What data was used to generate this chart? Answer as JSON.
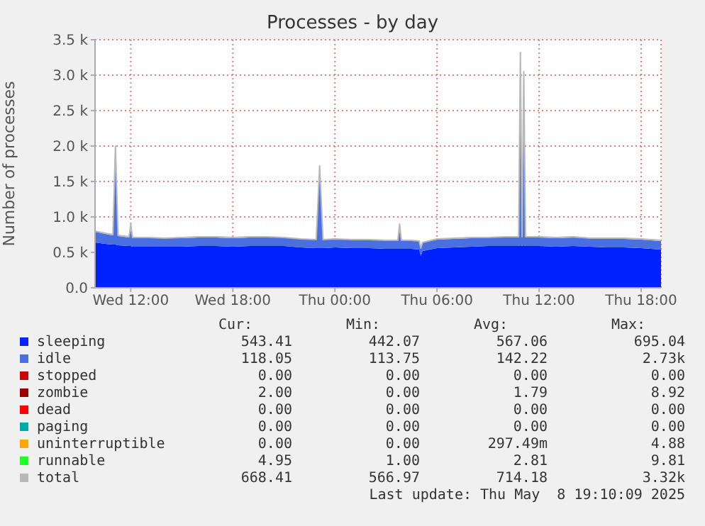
{
  "chart_data": {
    "type": "area",
    "title": "Processes - by day",
    "ylabel": "Number of processes",
    "stacked": true,
    "grid": true,
    "legend": "bottom",
    "x": [
      "2025-05-07T09:54",
      "2025-05-07T10:30",
      "2025-05-07T10:57",
      "2025-05-07T11:06",
      "2025-05-07T11:15",
      "2025-05-07T11:54",
      "2025-05-07T12:00",
      "2025-05-07T12:06",
      "2025-05-07T13:00",
      "2025-05-07T14:00",
      "2025-05-07T15:00",
      "2025-05-07T16:00",
      "2025-05-07T17:00",
      "2025-05-07T18:00",
      "2025-05-07T19:00",
      "2025-05-07T20:00",
      "2025-05-07T21:00",
      "2025-05-07T22:00",
      "2025-05-07T22:54",
      "2025-05-07T23:06",
      "2025-05-07T23:18",
      "2025-05-08T00:00",
      "2025-05-08T01:00",
      "2025-05-08T02:00",
      "2025-05-08T03:00",
      "2025-05-08T03:42",
      "2025-05-08T03:48",
      "2025-05-08T03:54",
      "2025-05-08T04:30",
      "2025-05-08T04:57",
      "2025-05-08T05:03",
      "2025-05-08T05:09",
      "2025-05-08T06:00",
      "2025-05-08T07:00",
      "2025-05-08T08:00",
      "2025-05-08T09:00",
      "2025-05-08T10:00",
      "2025-05-08T10:48",
      "2025-05-08T10:54",
      "2025-05-08T11:00",
      "2025-05-08T11:06",
      "2025-05-08T11:12",
      "2025-05-08T12:00",
      "2025-05-08T13:00",
      "2025-05-08T14:00",
      "2025-05-08T15:00",
      "2025-05-08T16:00",
      "2025-05-08T17:00",
      "2025-05-08T18:00",
      "2025-05-08T19:10"
    ],
    "xlim": [
      "2025-05-07T09:54",
      "2025-05-08T19:10"
    ],
    "xticks": [
      {
        "value": "2025-05-07T12:00",
        "label": "Wed 12:00"
      },
      {
        "value": "2025-05-07T18:00",
        "label": "Wed 18:00"
      },
      {
        "value": "2025-05-08T00:00",
        "label": "Thu 00:00"
      },
      {
        "value": "2025-05-08T06:00",
        "label": "Thu 06:00"
      },
      {
        "value": "2025-05-08T12:00",
        "label": "Thu 12:00"
      },
      {
        "value": "2025-05-08T18:00",
        "label": "Thu 18:00"
      }
    ],
    "ylim": [
      0,
      3500
    ],
    "yticks": [
      {
        "value": 0,
        "label": "0.0"
      },
      {
        "value": 500,
        "label": "0.5 k"
      },
      {
        "value": 1000,
        "label": "1.0 k"
      },
      {
        "value": 1500,
        "label": "1.5 k"
      },
      {
        "value": 2000,
        "label": "2.0 k"
      },
      {
        "value": 2500,
        "label": "2.5 k"
      },
      {
        "value": 3000,
        "label": "3.0 k"
      },
      {
        "value": 3500,
        "label": "3.5 k"
      }
    ],
    "series": [
      {
        "name": "sleeping",
        "type": "area",
        "color": "#0022ff",
        "values": [
          640,
          620,
          610,
          610,
          600,
          590,
          590,
          580,
          580,
          580,
          580,
          590,
          590,
          580,
          590,
          590,
          590,
          570,
          560,
          560,
          560,
          570,
          560,
          560,
          550,
          550,
          550,
          550,
          550,
          540,
          450,
          520,
          560,
          570,
          580,
          590,
          590,
          590,
          600,
          590,
          600,
          590,
          590,
          580,
          590,
          580,
          570,
          570,
          560,
          540
        ]
      },
      {
        "name": "idle",
        "type": "area",
        "color": "#4a6fe0",
        "values": [
          150,
          140,
          130,
          1300,
          130,
          120,
          220,
          120,
          120,
          120,
          120,
          120,
          120,
          120,
          120,
          120,
          120,
          120,
          120,
          1050,
          120,
          120,
          120,
          120,
          120,
          120,
          250,
          120,
          120,
          120,
          100,
          120,
          120,
          120,
          120,
          120,
          120,
          120,
          2600,
          120,
          2350,
          120,
          120,
          120,
          120,
          120,
          120,
          120,
          120,
          120
        ]
      },
      {
        "name": "stopped",
        "type": "area",
        "color": "#cc0000",
        "values": [
          null,
          null,
          null,
          null,
          null,
          null,
          null,
          null,
          null,
          null,
          null,
          null,
          null,
          null,
          null,
          null,
          null,
          null,
          null,
          null,
          null,
          null,
          null,
          null,
          null,
          null,
          null,
          null,
          null,
          null,
          null,
          null,
          null,
          null,
          null,
          null,
          null,
          null,
          null,
          null,
          null,
          null,
          null,
          null,
          null,
          null,
          null,
          null,
          null,
          null
        ]
      },
      {
        "name": "zombie",
        "type": "area",
        "color": "#990000",
        "values": [
          null,
          null,
          null,
          null,
          null,
          null,
          null,
          null,
          null,
          null,
          null,
          null,
          null,
          null,
          null,
          null,
          null,
          null,
          null,
          null,
          null,
          null,
          null,
          null,
          null,
          null,
          null,
          null,
          null,
          null,
          null,
          null,
          null,
          null,
          null,
          null,
          null,
          null,
          null,
          null,
          null,
          null,
          null,
          null,
          null,
          null,
          null,
          null,
          null,
          null
        ]
      },
      {
        "name": "dead",
        "type": "area",
        "color": "#ff0000",
        "values": [
          null,
          null,
          null,
          null,
          null,
          null,
          null,
          null,
          null,
          null,
          null,
          null,
          null,
          null,
          null,
          null,
          null,
          null,
          null,
          null,
          null,
          null,
          null,
          null,
          null,
          null,
          null,
          null,
          null,
          null,
          null,
          null,
          null,
          null,
          null,
          null,
          null,
          null,
          null,
          null,
          null,
          null,
          null,
          null,
          null,
          null,
          null,
          null,
          null,
          null
        ]
      },
      {
        "name": "paging",
        "type": "area",
        "color": "#00aaaa",
        "values": [
          null,
          null,
          null,
          null,
          null,
          null,
          null,
          null,
          null,
          null,
          null,
          null,
          null,
          null,
          null,
          null,
          null,
          null,
          null,
          null,
          null,
          null,
          null,
          null,
          null,
          null,
          null,
          null,
          null,
          null,
          null,
          null,
          null,
          null,
          null,
          null,
          null,
          null,
          null,
          null,
          null,
          null,
          null,
          null,
          null,
          null,
          null,
          null,
          null,
          null
        ]
      },
      {
        "name": "uninterruptible",
        "type": "area",
        "color": "#ffa500",
        "values": [
          null,
          null,
          null,
          null,
          null,
          null,
          null,
          null,
          null,
          null,
          null,
          null,
          null,
          null,
          null,
          null,
          null,
          null,
          null,
          null,
          null,
          null,
          null,
          null,
          null,
          null,
          null,
          null,
          null,
          null,
          null,
          null,
          null,
          null,
          null,
          null,
          null,
          null,
          null,
          null,
          null,
          null,
          null,
          null,
          null,
          null,
          null,
          null,
          null,
          null
        ]
      },
      {
        "name": "runnable",
        "type": "area",
        "color": "#22ff22",
        "values": [
          null,
          null,
          null,
          null,
          null,
          null,
          null,
          null,
          null,
          null,
          null,
          null,
          null,
          null,
          null,
          null,
          null,
          null,
          null,
          null,
          null,
          null,
          null,
          null,
          null,
          null,
          null,
          null,
          null,
          null,
          null,
          null,
          null,
          null,
          null,
          null,
          null,
          null,
          null,
          null,
          null,
          null,
          null,
          null,
          null,
          null,
          null,
          null,
          null,
          null
        ]
      },
      {
        "name": "total",
        "type": "line",
        "color": "#b8b8b8",
        "values": [
          800,
          770,
          750,
          2000,
          740,
          720,
          900,
          710,
          710,
          700,
          710,
          720,
          720,
          710,
          720,
          720,
          710,
          690,
          680,
          1720,
          680,
          690,
          680,
          680,
          670,
          670,
          900,
          670,
          670,
          660,
          560,
          640,
          690,
          700,
          710,
          710,
          720,
          720,
          3320,
          720,
          3050,
          720,
          720,
          710,
          720,
          700,
          700,
          700,
          690,
          670
        ]
      }
    ],
    "annotations": [
      "Cur:",
      "Min:",
      "Avg:",
      "Max:",
      "543.41",
      "442.07",
      "567.06",
      "695.04",
      "118.05",
      "113.75",
      "142.22",
      "2.73k",
      "0.00",
      "0.00",
      "0.00",
      "0.00",
      "2.00",
      "0.00",
      "1.79",
      "8.92",
      "0.00",
      "0.00",
      "0.00",
      "0.00",
      "0.00",
      "0.00",
      "0.00",
      "0.00",
      "0.00",
      "0.00",
      "297.49m",
      "4.88",
      "4.95",
      "1.00",
      "2.81",
      "9.81",
      "668.41",
      "566.97",
      "714.18",
      "3.32k",
      "Last update: Thu May  8 19:10:09 2025"
    ]
  }
}
